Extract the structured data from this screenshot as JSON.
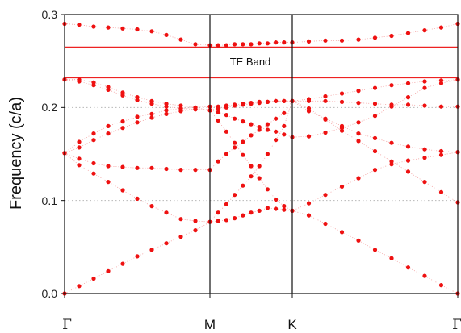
{
  "chart_data": {
    "type": "scatter",
    "title": "",
    "xlabel": "",
    "ylabel": "Frequency  (c/a)",
    "ylim": [
      0,
      0.3
    ],
    "y_ticks": [
      "0.0",
      "0.1",
      "0.2",
      "0.3"
    ],
    "x_ticks": [
      {
        "label": "Γ",
        "pos": 0
      },
      {
        "label": "M",
        "pos": 1
      },
      {
        "label": "K",
        "pos": 2
      },
      {
        "label": "Γ",
        "pos": 3
      }
    ],
    "grid": "dotted horizontal at 0.1 and 0.2",
    "marker_color": "#ee1111",
    "gap_line_color": "#ee2222",
    "band_gap": {
      "label": "TE Band",
      "lower": 0.232,
      "upper": 0.265
    },
    "series": [
      {
        "x": [
          0,
          0.1,
          0.2,
          0.3,
          0.4,
          0.5,
          0.6,
          0.7,
          0.8,
          0.9,
          1.0,
          1.1,
          1.2,
          1.3,
          1.4,
          1.5,
          1.6,
          1.7,
          1.8,
          1.9,
          2.0,
          2.1,
          2.2,
          2.3,
          2.4,
          2.5,
          2.6,
          2.7,
          2.8,
          2.9,
          3.0
        ],
        "y": [
          0,
          0.008,
          0.016,
          0.024,
          0.032,
          0.04,
          0.047,
          0.054,
          0.061,
          0.068,
          0.077,
          0.078,
          0.079,
          0.081,
          0.084,
          0.087,
          0.089,
          0.092,
          0.091,
          0.09,
          0.089,
          0.084,
          0.075,
          0.066,
          0.057,
          0.047,
          0.038,
          0.028,
          0.019,
          0.009,
          0
        ]
      },
      {
        "x": [
          0,
          0.1,
          0.2,
          0.3,
          0.4,
          0.5,
          0.6,
          0.7,
          0.8,
          0.9,
          1.0,
          1.1,
          1.2,
          1.3,
          1.4,
          1.5,
          1.6,
          1.7,
          1.8,
          1.9,
          2.0,
          2.1,
          2.2,
          2.3,
          2.4,
          2.5,
          2.6,
          2.7,
          2.8,
          2.9,
          3.0
        ],
        "y": [
          0.151,
          0.145,
          0.14,
          0.137,
          0.136,
          0.135,
          0.135,
          0.134,
          0.133,
          0.133,
          0.133,
          0.142,
          0.15,
          0.157,
          0.163,
          0.17,
          0.176,
          0.182,
          0.188,
          0.194,
          0.207,
          0.207,
          0.207,
          0.206,
          0.205,
          0.204,
          0.203,
          0.203,
          0.202,
          0.201,
          0.201
        ]
      },
      {
        "x": [
          0,
          0.1,
          0.2,
          0.3,
          0.4,
          0.5,
          0.6,
          0.7,
          0.8,
          0.9,
          1.0,
          1.1,
          1.2,
          1.3,
          1.4,
          1.5,
          1.6,
          1.7,
          1.8,
          1.9,
          2.0,
          2.1,
          2.2,
          2.3,
          2.4,
          2.5,
          2.6,
          2.7,
          2.8,
          2.9,
          3.0
        ],
        "y": [
          0.151,
          0.138,
          0.129,
          0.12,
          0.111,
          0.102,
          0.094,
          0.087,
          0.08,
          0.078,
          0.077,
          0.087,
          0.096,
          0.106,
          0.116,
          0.126,
          0.137,
          0.15,
          0.165,
          0.18,
          0.207,
          0.196,
          0.188,
          0.18,
          0.172,
          0.167,
          0.162,
          0.158,
          0.155,
          0.153,
          0.152
        ]
      },
      {
        "x": [
          0,
          0.1,
          0.2,
          0.3,
          0.4,
          0.5,
          0.6,
          0.7,
          0.8,
          0.9,
          1.0,
          1.1,
          1.2,
          1.3,
          1.4,
          1.5,
          1.6,
          1.7,
          1.8,
          1.9,
          2.0,
          2.1,
          2.2,
          2.3,
          2.4,
          2.5,
          2.6,
          2.7,
          2.8,
          2.9,
          3.0
        ],
        "y": [
          0.151,
          0.163,
          0.172,
          0.18,
          0.185,
          0.19,
          0.193,
          0.197,
          0.199,
          0.2,
          0.201,
          0.201,
          0.202,
          0.203,
          0.204,
          0.205,
          0.206,
          0.206,
          0.207,
          0.207,
          0.207,
          0.199,
          0.187,
          0.175,
          0.164,
          0.153,
          0.142,
          0.131,
          0.12,
          0.109,
          0.098
        ]
      },
      {
        "x": [
          0,
          0.1,
          0.2,
          0.3,
          0.4,
          0.5,
          0.6,
          0.7,
          0.8,
          0.9,
          1.0,
          1.1,
          1.2,
          1.3,
          1.4,
          1.5,
          1.6,
          1.7,
          1.8,
          1.9,
          2.0,
          2.1,
          2.2,
          2.3,
          2.4,
          2.5,
          2.6,
          2.7,
          2.8,
          2.9,
          3.0
        ],
        "y": [
          0.151,
          0.157,
          0.165,
          0.172,
          0.178,
          0.184,
          0.189,
          0.193,
          0.196,
          0.198,
          0.197,
          0.186,
          0.174,
          0.162,
          0.149,
          0.137,
          0.124,
          0.112,
          0.101,
          0.094,
          0.089,
          0.097,
          0.106,
          0.115,
          0.124,
          0.133,
          0.139,
          0.143,
          0.146,
          0.149,
          0.152
        ]
      },
      {
        "x": [
          0,
          0.1,
          0.2,
          0.3,
          0.4,
          0.5,
          0.6,
          0.7,
          0.8,
          0.9,
          1.0,
          1.1,
          1.2,
          1.3,
          1.4,
          1.5,
          1.6,
          1.7,
          1.8,
          1.9,
          2.0,
          2.1,
          2.2,
          2.3,
          2.4,
          2.5,
          2.6,
          2.7,
          2.8,
          2.9,
          3.0
        ],
        "y": [
          0.23,
          0.23,
          0.227,
          0.222,
          0.216,
          0.211,
          0.207,
          0.204,
          0.202,
          0.2,
          0.197,
          0.195,
          0.192,
          0.188,
          0.185,
          0.182,
          0.179,
          0.176,
          0.174,
          0.171,
          0.168,
          0.169,
          0.173,
          0.178,
          0.184,
          0.191,
          0.201,
          0.211,
          0.221,
          0.226,
          0.23
        ]
      },
      {
        "x": [
          0,
          0.1,
          0.2,
          0.3,
          0.4,
          0.5,
          0.6,
          0.7,
          0.8,
          0.9,
          1.0,
          1.1,
          1.2,
          1.3,
          1.4,
          1.5,
          1.6,
          1.7,
          1.8,
          1.9,
          2.0,
          2.1,
          2.2,
          2.3,
          2.4,
          2.5,
          2.6,
          2.7,
          2.8,
          2.9,
          3.0
        ],
        "y": [
          0.23,
          0.228,
          0.224,
          0.219,
          0.213,
          0.208,
          0.204,
          0.201,
          0.199,
          0.198,
          0.197,
          0.199,
          0.2,
          0.202,
          0.203,
          0.204,
          0.205,
          0.206,
          0.207,
          0.207,
          0.207,
          0.209,
          0.212,
          0.215,
          0.218,
          0.221,
          0.224,
          0.226,
          0.228,
          0.229,
          0.23
        ]
      },
      {
        "x": [
          0,
          0.1,
          0.2,
          0.3,
          0.4,
          0.5,
          0.6,
          0.7,
          0.8,
          0.9,
          1.0,
          1.1,
          1.2,
          1.3,
          1.4,
          1.5,
          1.6,
          1.7,
          1.8,
          1.9,
          2.0,
          2.1,
          2.2,
          2.3,
          2.4,
          2.5,
          2.6,
          2.7,
          2.8,
          2.9,
          3.0
        ],
        "y": [
          0.29,
          0.289,
          0.287,
          0.286,
          0.285,
          0.284,
          0.282,
          0.278,
          0.273,
          0.268,
          0.267,
          0.267,
          0.267,
          0.268,
          0.268,
          0.268,
          0.269,
          0.269,
          0.27,
          0.27,
          0.27,
          0.271,
          0.272,
          0.272,
          0.273,
          0.275,
          0.277,
          0.28,
          0.283,
          0.286,
          0.29
        ]
      }
    ]
  }
}
